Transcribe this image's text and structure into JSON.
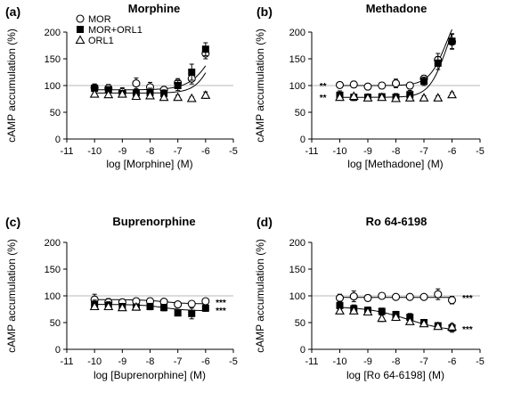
{
  "chart_data": [
    {
      "type": "scatter",
      "panel_label": "(a)",
      "title": "Morphine",
      "xlabel": "log [Morphine] (M)",
      "ylabel": "cAMP accumulation (%)",
      "xlim": [
        -11,
        -5
      ],
      "ylim": [
        0,
        200
      ],
      "xticks": [
        -11,
        -10,
        -9,
        -8,
        -7,
        -6,
        -5
      ],
      "xtick_labels": [
        "-11",
        "-10",
        "-9",
        "-8",
        "-7",
        "-6",
        "-5"
      ],
      "yticks": [
        0,
        50,
        100,
        150,
        200
      ],
      "ytick_labels": [
        "0",
        "50",
        "100",
        "150",
        "200"
      ],
      "reference_line": 100,
      "legend": {
        "position": "top-left",
        "entries": [
          "MOR",
          "MOR+ORL1",
          "ORL1"
        ]
      },
      "series": [
        {
          "name": "MOR",
          "marker": "open-circle",
          "x": [
            -10,
            -9.5,
            -9,
            -8.5,
            -8,
            -7.5,
            -7,
            -6.5,
            -6
          ],
          "y": [
            96,
            95,
            88,
            104,
            97,
            92,
            105,
            113,
            160
          ],
          "err": [
            6,
            7,
            8,
            10,
            9,
            6,
            8,
            10,
            10
          ],
          "fit": {
            "bottom": 92,
            "top": 250,
            "logec50": -5.6,
            "hill": 1.0
          }
        },
        {
          "name": "MOR+ORL1",
          "marker": "filled-square",
          "x": [
            -10,
            -9.5,
            -9,
            -8.5,
            -8,
            -7.5,
            -7,
            -6.5,
            -6
          ],
          "y": [
            95,
            92,
            85,
            86,
            87,
            85,
            100,
            125,
            168
          ],
          "err": [
            8,
            6,
            6,
            7,
            8,
            7,
            9,
            15,
            12
          ],
          "fit": {
            "bottom": 86,
            "top": 250,
            "logec50": -5.6,
            "hill": 1.3
          }
        },
        {
          "name": "ORL1",
          "marker": "open-triangle",
          "x": [
            -10,
            -9.5,
            -9,
            -8.5,
            -8,
            -7.5,
            -7,
            -6.5,
            -6
          ],
          "y": [
            84,
            83,
            84,
            80,
            81,
            78,
            78,
            76,
            82
          ],
          "err": [
            5,
            4,
            4,
            4,
            4,
            4,
            4,
            3,
            6
          ],
          "fit": null
        }
      ],
      "annotations": []
    },
    {
      "type": "scatter",
      "panel_label": "(b)",
      "title": "Methadone",
      "xlabel": "log [Methadone] (M)",
      "ylabel": "cAMP accumulation (%)",
      "xlim": [
        -11,
        -5
      ],
      "ylim": [
        0,
        200
      ],
      "xticks": [
        -11,
        -10,
        -9,
        -8,
        -7,
        -6,
        -5
      ],
      "xtick_labels": [
        "-11",
        "-10",
        "-9",
        "-8",
        "-7",
        "-6",
        "-5"
      ],
      "yticks": [
        0,
        50,
        100,
        150,
        200
      ],
      "ytick_labels": [
        "0",
        "50",
        "100",
        "150",
        "200"
      ],
      "reference_line": 100,
      "series": [
        {
          "name": "MOR",
          "marker": "open-circle",
          "x": [
            -10,
            -9.5,
            -9,
            -8.5,
            -8,
            -7.5,
            -7,
            -6.5,
            -6
          ],
          "y": [
            101,
            102,
            98,
            100,
            104,
            100,
            113,
            148,
            182
          ],
          "err": [
            5,
            6,
            6,
            6,
            8,
            6,
            6,
            12,
            14
          ],
          "fit": {
            "bottom": 100,
            "top": 260,
            "logec50": -6.2,
            "hill": 1.4
          }
        },
        {
          "name": "MOR+ORL1",
          "marker": "filled-square",
          "x": [
            -10,
            -9.5,
            -9,
            -8.5,
            -8,
            -7.5,
            -7,
            -6.5,
            -6
          ],
          "y": [
            82,
            78,
            78,
            79,
            78,
            83,
            108,
            142,
            183
          ],
          "err": [
            8,
            6,
            6,
            6,
            7,
            8,
            8,
            12,
            14
          ],
          "fit": {
            "bottom": 78,
            "top": 260,
            "logec50": -6.2,
            "hill": 1.4
          }
        },
        {
          "name": "ORL1",
          "marker": "open-triangle",
          "x": [
            -10,
            -9.5,
            -9,
            -8.5,
            -8,
            -7.5,
            -7,
            -6.5,
            -6
          ],
          "y": [
            78,
            80,
            77,
            78,
            76,
            77,
            77,
            77,
            83
          ],
          "err": [
            4,
            4,
            4,
            4,
            4,
            4,
            4,
            4,
            4
          ],
          "fit": null
        }
      ],
      "annotations": [
        {
          "text": "**",
          "x": -10.6,
          "y": 100
        },
        {
          "text": "**",
          "x": -10.6,
          "y": 78
        }
      ]
    },
    {
      "type": "scatter",
      "panel_label": "(c)",
      "title": "Buprenorphine",
      "xlabel": "log [Buprenorphine] (M)",
      "ylabel": "cAMP accumulation (%)",
      "xlim": [
        -11,
        -5
      ],
      "ylim": [
        0,
        200
      ],
      "xticks": [
        -11,
        -10,
        -9,
        -8,
        -7,
        -6,
        -5
      ],
      "xtick_labels": [
        "-11",
        "-10",
        "-9",
        "-8",
        "-7",
        "-6",
        "-5"
      ],
      "yticks": [
        0,
        50,
        100,
        150,
        200
      ],
      "ytick_labels": [
        "0",
        "50",
        "100",
        "150",
        "200"
      ],
      "reference_line": 100,
      "series": [
        {
          "name": "MOR",
          "marker": "open-circle",
          "x": [
            -10,
            -9.5,
            -9,
            -8.5,
            -8,
            -7.5,
            -7,
            -6.5,
            -6
          ],
          "y": [
            93,
            88,
            88,
            90,
            90,
            89,
            84,
            85,
            90
          ],
          "err": [
            10,
            7,
            6,
            6,
            6,
            5,
            5,
            5,
            5
          ],
          "fit": {
            "bottom": 85,
            "top": 93,
            "logec50": -7.5,
            "hill": -1.0
          }
        },
        {
          "name": "MOR+ORL1",
          "marker": "filled-square",
          "x": [
            -10,
            -9.5,
            -9,
            -8.5,
            -8,
            -7.5,
            -7,
            -6.5,
            -6
          ],
          "y": [
            84,
            82,
            80,
            79,
            80,
            78,
            68,
            67,
            77
          ],
          "err": [
            8,
            7,
            5,
            5,
            6,
            6,
            5,
            10,
            6
          ],
          "fit": {
            "bottom": 72,
            "top": 84,
            "logec50": -7.5,
            "hill": -1.0
          }
        },
        {
          "name": "ORL1",
          "marker": "open-triangle",
          "x": [
            -10,
            -9.5,
            -9,
            -8.5
          ],
          "y": [
            80,
            80,
            78,
            79
          ],
          "err": [
            3,
            3,
            3,
            3
          ],
          "fit": null
        }
      ],
      "annotations": [
        {
          "text": "***",
          "x": -5.45,
          "y": 88
        },
        {
          "text": "***",
          "x": -5.45,
          "y": 73
        }
      ]
    },
    {
      "type": "scatter",
      "panel_label": "(d)",
      "title": "Ro 64-6198",
      "xlabel": "log [Ro 64-6198] (M)",
      "ylabel": "cAMP accumulation (%)",
      "xlim": [
        -11,
        -5
      ],
      "ylim": [
        0,
        200
      ],
      "xticks": [
        -11,
        -10,
        -9,
        -8,
        -7,
        -6,
        -5
      ],
      "xtick_labels": [
        "-11",
        "-10",
        "-9",
        "-8",
        "-7",
        "-6",
        "-5"
      ],
      "yticks": [
        0,
        50,
        100,
        150,
        200
      ],
      "ytick_labels": [
        "0",
        "50",
        "100",
        "150",
        "200"
      ],
      "reference_line": 100,
      "series": [
        {
          "name": "MOR",
          "marker": "open-circle",
          "x": [
            -10,
            -9.5,
            -9,
            -8.5,
            -8,
            -7.5,
            -7,
            -6.5,
            -6
          ],
          "y": [
            96,
            99,
            96,
            100,
            98,
            98,
            98,
            103,
            92
          ],
          "err": [
            7,
            10,
            6,
            4,
            4,
            4,
            4,
            10,
            7
          ],
          "fit": {
            "bottom": 97,
            "top": 97,
            "logec50": -8.0,
            "hill": 1.0
          }
        },
        {
          "name": "MOR+ORL1",
          "marker": "filled-square",
          "x": [
            -10,
            -9.5,
            -9,
            -8.5,
            -8,
            -7.5,
            -7,
            -6.5,
            -6
          ],
          "y": [
            82,
            76,
            73,
            71,
            65,
            60,
            50,
            44,
            40
          ],
          "err": [
            8,
            7,
            6,
            6,
            6,
            7,
            5,
            6,
            8
          ],
          "fit": {
            "bottom": 33,
            "top": 80,
            "logec50": -7.6,
            "hill": -0.6
          }
        },
        {
          "name": "ORL1",
          "marker": "open-triangle",
          "x": [
            -10,
            -9.5,
            -9,
            -8.5,
            -8,
            -7.5,
            -7,
            -6.5,
            -6
          ],
          "y": [
            72,
            72,
            70,
            58,
            60,
            52,
            48,
            43,
            42
          ],
          "err": [
            4,
            5,
            5,
            6,
            6,
            5,
            5,
            5,
            6
          ],
          "fit": null
        }
      ],
      "annotations": [
        {
          "text": "***",
          "x": -5.45,
          "y": 97
        },
        {
          "text": "***",
          "x": -5.45,
          "y": 38
        }
      ]
    }
  ]
}
